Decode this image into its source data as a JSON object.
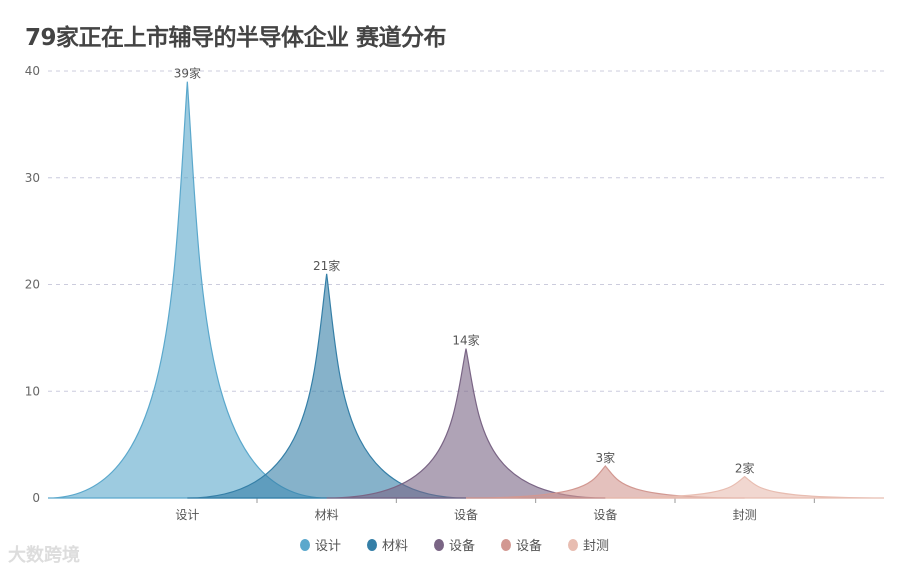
{
  "chart_data": {
    "type": "bar",
    "title": "79家正在上市辅导的半导体企业 赛道分布",
    "categories": [
      "设计",
      "材料",
      "设备",
      "设备",
      "封测"
    ],
    "values": [
      39,
      21,
      14,
      3,
      2
    ],
    "data_labels": [
      "39家",
      "21家",
      "14家",
      "3家",
      "2家"
    ],
    "legend": [
      "设计",
      "材料",
      "设备",
      "设备",
      "封测"
    ],
    "legend_position": "bottom",
    "colors": [
      "#5ba8cc",
      "#357fa7",
      "#7a6585",
      "#d29891",
      "#e8bdb1"
    ],
    "ylim": [
      0,
      40
    ],
    "yticks": [
      0,
      10,
      20,
      30,
      40
    ],
    "grid": true
  },
  "watermark": "大数跨境"
}
